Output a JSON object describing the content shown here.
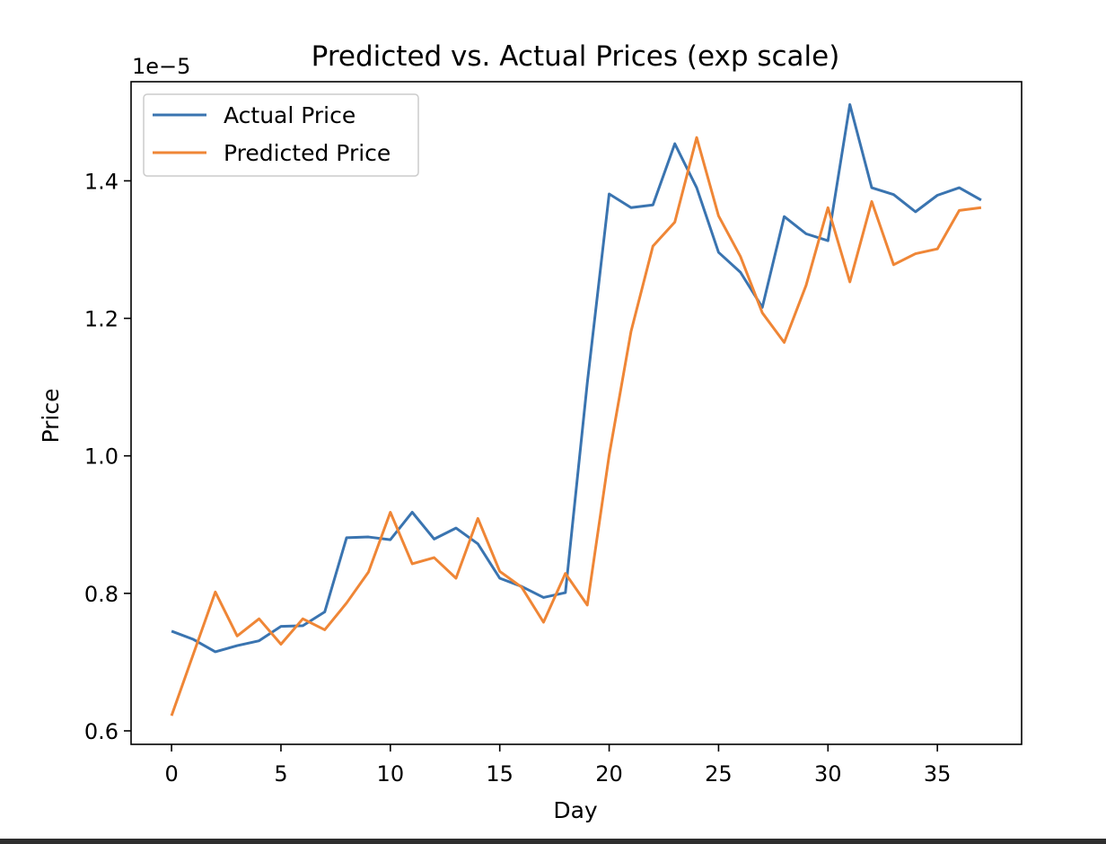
{
  "chart_data": {
    "type": "line",
    "title": "Predicted vs. Actual Prices (exp scale)",
    "xlabel": "Day",
    "ylabel": "Price",
    "y_offset_label": "1e−5",
    "y_scale_factor": 1e-05,
    "xlim": [
      -1.85,
      38.85
    ],
    "ylim": [
      0.5804,
      1.5442
    ],
    "x_ticks": [
      0,
      5,
      10,
      15,
      20,
      25,
      30,
      35
    ],
    "x_tick_labels": [
      "0",
      "5",
      "10",
      "15",
      "20",
      "25",
      "30",
      "35"
    ],
    "y_ticks": [
      0.6,
      0.8,
      1.0,
      1.2,
      1.4
    ],
    "y_tick_labels": [
      "0.6",
      "0.8",
      "1.0",
      "1.2",
      "1.4"
    ],
    "grid": false,
    "legend_position": "top-left",
    "x": [
      0,
      1,
      2,
      3,
      4,
      5,
      6,
      7,
      8,
      9,
      10,
      11,
      12,
      13,
      14,
      15,
      16,
      17,
      18,
      19,
      20,
      21,
      22,
      23,
      24,
      25,
      26,
      27,
      28,
      29,
      30,
      31,
      32,
      33,
      34,
      35,
      36,
      37
    ],
    "series": [
      {
        "name": "Actual Price",
        "color": "#3a74b0",
        "values": [
          0.745,
          0.733,
          0.715,
          0.724,
          0.731,
          0.752,
          0.753,
          0.773,
          0.881,
          0.882,
          0.878,
          0.918,
          0.879,
          0.895,
          0.872,
          0.822,
          0.81,
          0.794,
          0.801,
          1.106,
          1.381,
          1.361,
          1.365,
          1.454,
          1.39,
          1.296,
          1.267,
          1.216,
          1.348,
          1.323,
          1.313,
          1.511,
          1.39,
          1.38,
          1.355,
          1.379,
          1.39,
          1.372
        ]
      },
      {
        "name": "Predicted Price",
        "color": "#ef8636",
        "values": [
          0.622,
          0.712,
          0.802,
          0.738,
          0.763,
          0.726,
          0.763,
          0.747,
          0.786,
          0.831,
          0.918,
          0.843,
          0.852,
          0.822,
          0.909,
          0.832,
          0.809,
          0.758,
          0.829,
          0.783,
          1.001,
          1.181,
          1.305,
          1.34,
          1.463,
          1.349,
          1.29,
          1.208,
          1.165,
          1.248,
          1.361,
          1.253,
          1.37,
          1.278,
          1.294,
          1.301,
          1.357,
          1.361
        ]
      }
    ]
  }
}
